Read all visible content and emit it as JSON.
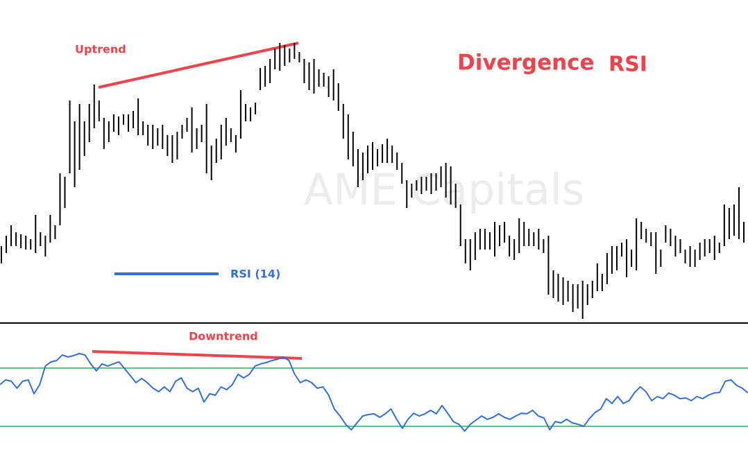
{
  "chart_data": [
    {
      "type": "range-bar",
      "title": "Divergence",
      "subtitle": "RSI",
      "annotation": "Uptrend",
      "watermark": "AME Capitals",
      "color": "#000000",
      "ylim": [
        0,
        466
      ],
      "high": [
        111,
        126,
        141,
        131,
        128,
        126,
        121,
        156,
        131,
        126,
        156,
        141,
        216,
        211,
        321,
        291,
        316,
        291,
        316,
        344,
        321,
        296,
        291,
        301,
        298,
        301,
        301,
        306,
        324,
        291,
        286,
        286,
        281,
        286,
        271,
        271,
        276,
        286,
        296,
        311,
        281,
        286,
        316,
        256,
        266,
        286,
        296,
        281,
        271,
        336,
        316,
        311,
        318,
        368,
        371,
        381,
        396,
        404,
        401,
        396,
        404,
        391,
        381,
        376,
        381,
        366,
        361,
        356,
        366,
        346,
        316,
        301,
        276,
        251,
        246,
        256,
        261,
        251,
        258,
        266,
        256,
        246,
        231,
        206,
        201,
        206,
        211,
        211,
        216,
        216,
        226,
        231,
        226,
        201,
        171,
        121,
        121,
        131,
        136,
        136,
        131,
        146,
        141,
        146,
        126,
        121,
        151,
        146,
        136,
        131,
        136,
        121,
        126,
        76,
        71,
        66,
        61,
        56,
        56,
        61,
        56,
        61,
        86,
        71,
        101,
        111,
        111,
        116,
        121,
        106,
        151,
        146,
        136,
        131,
        131,
        106,
        141,
        136,
        126,
        121,
        106,
        111,
        106,
        116,
        121,
        121,
        126,
        116,
        171,
        166,
        171,
        196,
        146
      ],
      "low": [
        86,
        101,
        111,
        111,
        108,
        106,
        106,
        101,
        111,
        96,
        116,
        121,
        141,
        166,
        216,
        196,
        221,
        241,
        261,
        281,
        291,
        251,
        261,
        276,
        271,
        286,
        276,
        281,
        271,
        271,
        256,
        251,
        256,
        251,
        241,
        231,
        236,
        266,
        276,
        246,
        251,
        261,
        216,
        206,
        231,
        236,
        256,
        261,
        246,
        266,
        291,
        291,
        301,
        336,
        341,
        346,
        366,
        364,
        371,
        376,
        381,
        376,
        346,
        336,
        331,
        341,
        341,
        326,
        321,
        306,
        266,
        236,
        226,
        196,
        206,
        216,
        221,
        226,
        231,
        231,
        231,
        221,
        201,
        166,
        181,
        191,
        186,
        191,
        186,
        191,
        196,
        181,
        171,
        166,
        111,
        86,
        76,
        91,
        106,
        106,
        106,
        96,
        111,
        116,
        96,
        91,
        101,
        111,
        111,
        111,
        106,
        101,
        41,
        36,
        31,
        26,
        31,
        16,
        21,
        6,
        26,
        36,
        46,
        46,
        56,
        71,
        76,
        96,
        66,
        81,
        76,
        121,
        116,
        111,
        71,
        81,
        116,
        111,
        96,
        101,
        86,
        81,
        81,
        91,
        96,
        101,
        91,
        101,
        111,
        121,
        126,
        121,
        116
      ]
    },
    {
      "type": "line",
      "annotation": "Downtrend",
      "ylim": [
        0,
        100
      ],
      "levels": [
        30,
        70
      ],
      "level_color": "#2db34a",
      "series": [
        {
          "name": "RSI (14)",
          "color": "#2f6fe6",
          "values": [
            58.6,
            61.9,
            61.0,
            56.2,
            61.0,
            61.9,
            52.4,
            58.6,
            71.4,
            74.3,
            75.2,
            79.0,
            77.6,
            78.6,
            80.0,
            79.0,
            72.9,
            68.1,
            72.9,
            71.4,
            72.9,
            74.3,
            69.5,
            64.8,
            60.0,
            62.9,
            60.0,
            56.2,
            53.8,
            57.1,
            53.8,
            61.0,
            63.3,
            56.2,
            53.8,
            56.2,
            46.7,
            52.4,
            51.4,
            57.1,
            55.2,
            58.6,
            65.7,
            63.3,
            65.7,
            71.4,
            72.9,
            73.8,
            75.2,
            76.2,
            77.6,
            75.2,
            65.7,
            60.0,
            61.9,
            60.0,
            56.2,
            57.1,
            51.4,
            41.9,
            37.1,
            31.4,
            27.6,
            32.4,
            37.1,
            38.1,
            38.6,
            36.2,
            38.6,
            41.9,
            34.8,
            28.6,
            34.8,
            39.0,
            37.1,
            38.6,
            41.0,
            38.6,
            44.3,
            39.0,
            33.3,
            31.4,
            26.7,
            31.4,
            34.3,
            37.1,
            34.8,
            36.2,
            38.6,
            36.2,
            34.8,
            37.1,
            39.0,
            38.6,
            41.0,
            37.1,
            35.7,
            27.6,
            33.3,
            32.4,
            34.8,
            32.4,
            31.4,
            30.0,
            35.2,
            39.5,
            41.9,
            49.0,
            45.7,
            50.5,
            45.7,
            47.6,
            53.3,
            57.1,
            53.8,
            47.6,
            50.5,
            49.0,
            52.9,
            51.4,
            49.0,
            49.5,
            47.6,
            50.5,
            49.0,
            51.4,
            52.9,
            53.3,
            61.0,
            61.9,
            58.1,
            56.2,
            52.9
          ]
        }
      ]
    }
  ]
}
